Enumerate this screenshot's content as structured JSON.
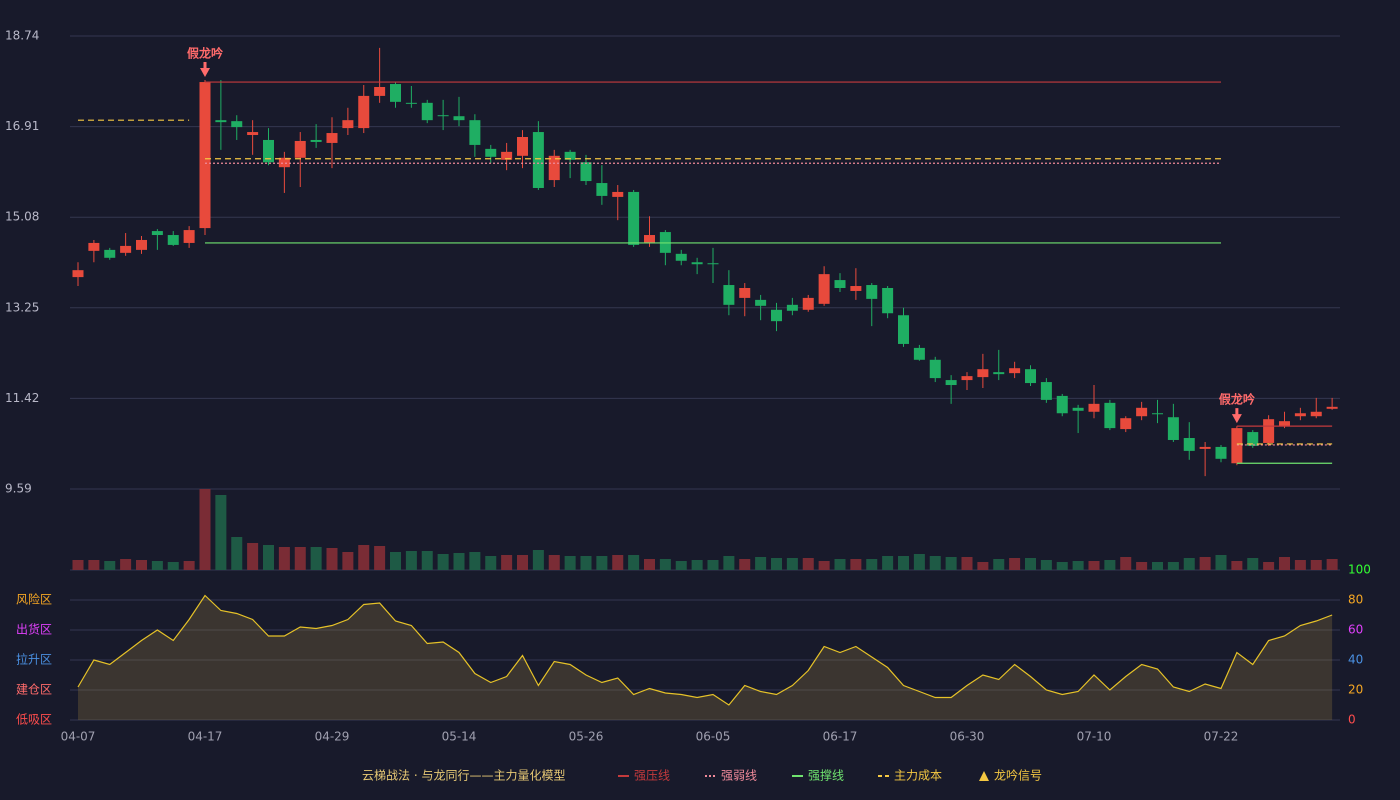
{
  "chart_data": [
    {
      "type": "candlestick",
      "categories": [
        "04-07",
        null,
        null,
        null,
        null,
        null,
        null,
        null,
        "04-17",
        null,
        null,
        null,
        null,
        null,
        null,
        null,
        "04-29",
        null,
        null,
        null,
        null,
        null,
        null,
        null,
        "05-14",
        null,
        null,
        null,
        null,
        null,
        null,
        null,
        "05-26",
        null,
        null,
        null,
        null,
        null,
        null,
        null,
        "06-05",
        null,
        null,
        null,
        null,
        null,
        null,
        null,
        "06-17",
        null,
        null,
        null,
        null,
        null,
        null,
        null,
        "06-30",
        null,
        null,
        null,
        null,
        null,
        null,
        null,
        "07-10",
        null,
        null,
        null,
        null,
        null,
        null,
        null,
        "07-22",
        null,
        null,
        null,
        null,
        null,
        null,
        null
      ],
      "open": [
        13.87,
        14.4,
        14.42,
        14.36,
        14.42,
        14.8,
        14.72,
        14.56,
        14.86,
        17.04,
        17.02,
        16.74,
        16.64,
        16.09,
        16.28,
        16.64,
        16.58,
        16.88,
        16.88,
        17.53,
        17.77,
        17.39,
        17.39,
        17.14,
        17.12,
        17.04,
        16.46,
        16.24,
        16.32,
        16.8,
        15.83,
        16.4,
        16.19,
        15.77,
        15.49,
        15.59,
        14.56,
        14.78,
        14.34,
        14.17,
        14.15,
        13.71,
        13.45,
        13.41,
        13.21,
        13.31,
        13.21,
        13.33,
        13.81,
        13.59,
        13.71,
        13.65,
        13.1,
        12.44,
        12.2,
        11.79,
        11.79,
        11.85,
        11.95,
        11.93,
        12.01,
        11.75,
        11.47,
        11.23,
        11.15,
        11.33,
        10.8,
        11.06,
        11.12,
        11.04,
        10.62,
        10.4,
        10.44,
        10.11,
        10.74,
        10.52,
        10.86,
        11.06,
        11.06,
        11.21
      ],
      "high": [
        14.17,
        14.62,
        14.46,
        14.76,
        14.7,
        14.84,
        14.8,
        14.9,
        17.85,
        17.85,
        17.14,
        17.04,
        16.88,
        16.4,
        16.8,
        16.96,
        17.1,
        17.29,
        17.75,
        18.5,
        17.81,
        17.73,
        17.45,
        17.45,
        17.51,
        17.16,
        16.54,
        16.58,
        16.84,
        17.02,
        16.44,
        16.44,
        16.34,
        16.13,
        15.73,
        15.63,
        15.1,
        14.82,
        14.42,
        14.26,
        14.46,
        14.01,
        13.75,
        13.51,
        13.35,
        13.45,
        13.51,
        14.09,
        13.95,
        14.05,
        13.75,
        13.69,
        13.25,
        12.5,
        12.26,
        11.89,
        11.95,
        12.32,
        12.4,
        12.16,
        12.09,
        11.83,
        11.51,
        11.29,
        11.69,
        11.39,
        11.06,
        11.35,
        11.39,
        11.31,
        10.94,
        10.54,
        10.48,
        10.86,
        10.78,
        11.08,
        11.15,
        11.23,
        11.43,
        11.43
      ],
      "low": [
        13.69,
        14.17,
        14.22,
        14.3,
        14.34,
        14.42,
        14.5,
        14.46,
        14.72,
        16.44,
        16.64,
        16.34,
        16.13,
        15.57,
        15.69,
        16.48,
        16.07,
        16.74,
        16.78,
        17.39,
        17.29,
        17.29,
        16.98,
        16.84,
        16.92,
        16.3,
        16.17,
        16.03,
        16.07,
        15.63,
        15.69,
        15.87,
        15.73,
        15.33,
        15.02,
        14.48,
        14.48,
        14.11,
        14.11,
        13.93,
        13.75,
        13.1,
        13.08,
        13.0,
        12.78,
        13.1,
        13.17,
        13.29,
        13.57,
        13.41,
        12.88,
        13.04,
        12.46,
        12.18,
        11.75,
        11.31,
        11.59,
        11.63,
        11.79,
        11.83,
        11.67,
        11.33,
        11.06,
        10.72,
        11.02,
        10.78,
        10.74,
        10.98,
        10.92,
        10.54,
        10.18,
        9.85,
        10.13,
        10.07,
        10.42,
        10.46,
        10.82,
        10.98,
        11.02,
        11.19
      ],
      "close": [
        14.01,
        14.56,
        14.26,
        14.5,
        14.62,
        14.72,
        14.52,
        14.82,
        17.81,
        17.0,
        16.9,
        16.8,
        16.19,
        16.28,
        16.62,
        16.6,
        16.78,
        17.04,
        17.53,
        17.71,
        17.41,
        17.37,
        17.04,
        17.12,
        17.04,
        16.54,
        16.3,
        16.4,
        16.7,
        15.67,
        16.32,
        16.24,
        15.81,
        15.51,
        15.59,
        14.52,
        14.72,
        14.36,
        14.2,
        14.13,
        14.13,
        13.31,
        13.65,
        13.29,
        12.98,
        13.19,
        13.45,
        13.93,
        13.65,
        13.69,
        13.43,
        13.14,
        12.52,
        12.2,
        11.83,
        11.69,
        11.87,
        12.01,
        11.91,
        12.03,
        11.73,
        11.39,
        11.12,
        11.17,
        11.31,
        10.82,
        11.02,
        11.23,
        11.1,
        10.58,
        10.36,
        10.44,
        10.2,
        10.82,
        10.46,
        11.0,
        10.96,
        11.12,
        11.15,
        11.25
      ],
      "up_color": "#e84a3c",
      "down_color": "#1fae63",
      "ylim": [
        9.59,
        18.74
      ],
      "yticks": [
        18.74,
        16.91,
        15.08,
        13.25,
        11.42,
        9.59
      ],
      "grid": true,
      "series": [
        {
          "name": "强压线",
          "color": "#c43a3c",
          "style": "solid",
          "values": [
            null,
            null,
            null,
            null,
            null,
            null,
            null,
            null,
            17.81,
            17.81,
            17.81,
            17.81,
            17.81,
            17.81,
            17.81,
            17.81,
            17.81,
            17.81,
            17.81,
            17.81,
            17.81,
            17.81,
            17.81,
            17.81,
            17.81,
            17.81,
            17.81,
            17.81,
            17.81,
            17.81,
            17.81,
            17.81,
            17.81,
            17.81,
            17.81,
            17.81,
            17.81,
            17.81,
            17.81,
            17.81,
            17.81,
            17.81,
            17.81,
            17.81,
            17.81,
            17.81,
            17.81,
            17.81,
            17.81,
            17.81,
            17.81,
            17.81,
            17.81,
            17.81,
            17.81,
            17.81,
            17.81,
            17.81,
            17.81,
            17.81,
            17.81,
            17.81,
            17.81,
            17.81,
            17.81,
            17.81,
            17.81,
            17.81,
            17.81,
            17.81,
            17.81,
            17.81,
            17.81,
            10.86,
            10.86,
            10.86,
            10.86,
            10.86,
            10.86,
            10.86
          ]
        },
        {
          "name": "强弱线",
          "color": "#f08a9a",
          "style": "dotted",
          "values": [
            null,
            null,
            null,
            null,
            null,
            null,
            null,
            null,
            16.17,
            16.17,
            16.17,
            16.17,
            16.17,
            16.17,
            16.17,
            16.17,
            16.17,
            16.17,
            16.17,
            16.17,
            16.17,
            16.17,
            16.17,
            16.17,
            16.17,
            16.17,
            16.17,
            16.17,
            16.17,
            16.17,
            16.17,
            16.17,
            16.17,
            16.17,
            16.17,
            16.17,
            16.17,
            16.17,
            16.17,
            16.17,
            16.17,
            16.17,
            16.17,
            16.17,
            16.17,
            16.17,
            16.17,
            16.17,
            16.17,
            16.17,
            16.17,
            16.17,
            16.17,
            16.17,
            16.17,
            16.17,
            16.17,
            16.17,
            16.17,
            16.17,
            16.17,
            16.17,
            16.17,
            16.17,
            16.17,
            16.17,
            16.17,
            16.17,
            16.17,
            16.17,
            16.17,
            16.17,
            16.17,
            10.48,
            10.48,
            10.48,
            10.48,
            10.48,
            10.48,
            10.48
          ]
        },
        {
          "name": "强撑线",
          "color": "#6fe36f",
          "style": "solid",
          "values": [
            null,
            null,
            null,
            null,
            null,
            null,
            null,
            null,
            14.56,
            14.56,
            14.56,
            14.56,
            14.56,
            14.56,
            14.56,
            14.56,
            14.56,
            14.56,
            14.56,
            14.56,
            14.56,
            14.56,
            14.56,
            14.56,
            14.56,
            14.56,
            14.56,
            14.56,
            14.56,
            14.56,
            14.56,
            14.56,
            14.56,
            14.56,
            14.56,
            14.56,
            14.56,
            14.56,
            14.56,
            14.56,
            14.56,
            14.56,
            14.56,
            14.56,
            14.56,
            14.56,
            14.56,
            14.56,
            14.56,
            14.56,
            14.56,
            14.56,
            14.56,
            14.56,
            14.56,
            14.56,
            14.56,
            14.56,
            14.56,
            14.56,
            14.56,
            14.56,
            14.56,
            14.56,
            14.56,
            14.56,
            14.56,
            14.56,
            14.56,
            14.56,
            14.56,
            14.56,
            14.56,
            10.11,
            10.11,
            10.11,
            10.11,
            10.11,
            10.11,
            10.11
          ]
        },
        {
          "name": "主力成本",
          "color": "#f5c842",
          "style": "dashed",
          "values": [
            17.04,
            17.04,
            17.04,
            17.04,
            17.04,
            17.04,
            17.04,
            17.04,
            16.26,
            16.26,
            16.26,
            16.26,
            16.26,
            16.26,
            16.26,
            16.26,
            16.26,
            16.26,
            16.26,
            16.26,
            16.26,
            16.26,
            16.26,
            16.26,
            16.26,
            16.26,
            16.26,
            16.26,
            16.26,
            16.26,
            16.26,
            16.26,
            16.26,
            16.26,
            16.26,
            16.26,
            16.26,
            16.26,
            16.26,
            16.26,
            16.26,
            16.26,
            16.26,
            16.26,
            16.26,
            16.26,
            16.26,
            16.26,
            16.26,
            16.26,
            16.26,
            16.26,
            16.26,
            16.26,
            16.26,
            16.26,
            16.26,
            16.26,
            16.26,
            16.26,
            16.26,
            16.26,
            16.26,
            16.26,
            16.26,
            16.26,
            16.26,
            16.26,
            16.26,
            16.26,
            16.26,
            16.26,
            16.26,
            10.5,
            10.5,
            10.5,
            10.5,
            10.5,
            10.5,
            10.5
          ]
        }
      ],
      "signals": [
        {
          "at": 8,
          "label": "假龙吟"
        },
        {
          "at": 73,
          "label": "假龙吟"
        }
      ],
      "signal_name": "龙吟信号",
      "signal_color": "#f5c842",
      "signal_label_color": "#ff6b6b",
      "legend_title": "云梯战法 · 与龙同行——主力量化模型"
    },
    {
      "type": "bar",
      "values": [
        10,
        10,
        9,
        11,
        10,
        9,
        8,
        9,
        81,
        75,
        33,
        27,
        25,
        23,
        23,
        23,
        22,
        18,
        25,
        24,
        18,
        19,
        19,
        16,
        17,
        18,
        14,
        15,
        15,
        20,
        15,
        14,
        14,
        14,
        15,
        15,
        11,
        11,
        9,
        10,
        10,
        14,
        11,
        13,
        12,
        12,
        12,
        9,
        11,
        11,
        11,
        14,
        14,
        16,
        14,
        13,
        13,
        8,
        11,
        12,
        12,
        10,
        8,
        9,
        9,
        10,
        13,
        8,
        8,
        8,
        12,
        13,
        15,
        9,
        12,
        8,
        13,
        10,
        10,
        11
      ],
      "up_color": "#7a2c35",
      "down_color": "#1e5a45"
    },
    {
      "type": "area",
      "values": [
        22,
        40,
        37,
        45,
        53,
        60,
        53,
        67,
        83,
        73,
        71,
        67,
        56,
        56,
        62,
        61,
        63,
        67,
        77,
        78,
        66,
        63,
        51,
        52,
        45,
        31,
        25,
        29,
        43,
        23,
        39,
        37,
        30,
        25,
        28,
        17,
        21,
        18,
        17,
        15,
        17,
        10,
        23,
        19,
        17,
        23,
        33,
        49,
        45,
        49,
        42,
        35,
        23,
        19,
        15,
        15,
        23,
        30,
        27,
        37,
        29,
        20,
        17,
        19,
        30,
        20,
        29,
        37,
        34,
        22,
        19,
        24,
        21,
        45,
        37,
        53,
        56,
        63,
        66,
        70
      ],
      "color": "#e6c228",
      "ylim": [
        0,
        100
      ],
      "yticks": [
        0,
        20,
        40,
        60,
        80,
        100
      ],
      "ytick_colors": [
        "#ff4d4d",
        "#f5a623",
        "#4a90e2",
        "#e040fb",
        "#f5a623",
        "#33ff33"
      ],
      "zones": [
        {
          "value": 80,
          "label": "风险区",
          "color": "#f5a623"
        },
        {
          "value": 60,
          "label": "出货区",
          "color": "#e040fb"
        },
        {
          "value": 40,
          "label": "拉升区",
          "color": "#4a90e2"
        },
        {
          "value": 20,
          "label": "建仓区",
          "color": "#ff6b6b"
        },
        {
          "value": 0,
          "label": "低吸区",
          "color": "#ff4d4d"
        }
      ]
    }
  ]
}
